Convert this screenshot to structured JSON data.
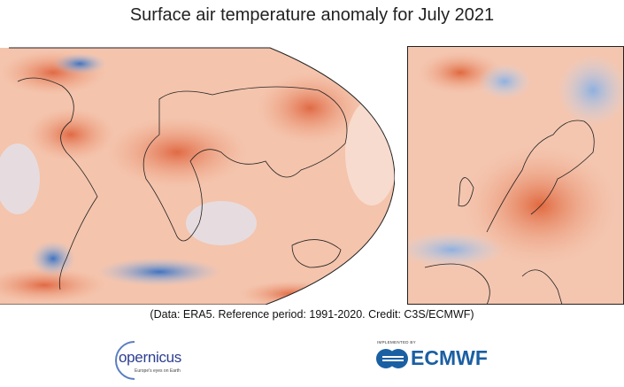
{
  "title": "Surface air temperature anomaly for July 2021",
  "credit": "(Data: ERA5.  Reference period: 1991-2020.  Credit: C3S/ECMWF)",
  "logos": {
    "copernicus": {
      "name": "opernicus",
      "tagline": "Europe's eyes on Earth"
    },
    "ecmwf": {
      "implemented_by": "IMPLEMENTED BY",
      "name": "ECMWF"
    }
  },
  "colors": {
    "warm": "#e8825e",
    "cool": "#6f9bd1",
    "neutral": "#f7f3f0",
    "coastline": "#222222"
  }
}
